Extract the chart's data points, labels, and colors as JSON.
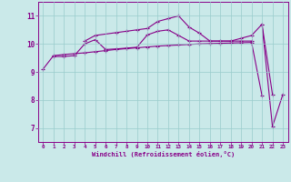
{
  "xlabel": "Windchill (Refroidissement éolien,°C)",
  "xlim": [
    -0.5,
    23.5
  ],
  "ylim": [
    6.5,
    11.5
  ],
  "yticks": [
    7,
    8,
    9,
    10,
    11
  ],
  "xticks": [
    0,
    1,
    2,
    3,
    4,
    5,
    6,
    7,
    8,
    9,
    10,
    11,
    12,
    13,
    14,
    15,
    16,
    17,
    18,
    19,
    20,
    21,
    22,
    23
  ],
  "bg_color": "#cae9e9",
  "line_color": "#880088",
  "grid_color": "#99cccc",
  "lines": [
    {
      "x": [
        0,
        1,
        2,
        3,
        4,
        5,
        6,
        7,
        8,
        9,
        10,
        11,
        12,
        13,
        14,
        15,
        16,
        17,
        18,
        19,
        20,
        21
      ],
      "y": [
        9.1,
        9.58,
        9.62,
        9.65,
        9.68,
        9.72,
        9.76,
        9.8,
        9.83,
        9.86,
        9.89,
        9.92,
        9.94,
        9.96,
        9.98,
        10.0,
        10.01,
        10.02,
        10.03,
        10.04,
        10.05,
        8.15
      ]
    },
    {
      "x": [
        1,
        2,
        3,
        4,
        5,
        6,
        7,
        8,
        9,
        10,
        11,
        12,
        13,
        14,
        15,
        16,
        17,
        18,
        19,
        20,
        21,
        22
      ],
      "y": [
        9.55,
        9.55,
        9.58,
        10.0,
        10.15,
        9.8,
        9.82,
        9.85,
        9.88,
        10.32,
        10.45,
        10.5,
        10.3,
        10.1,
        10.1,
        10.1,
        10.1,
        10.1,
        10.2,
        10.3,
        10.7,
        8.2
      ]
    },
    {
      "x": [
        4,
        5,
        7,
        8,
        9,
        10,
        11,
        12,
        13,
        14,
        15,
        16,
        17,
        18,
        19,
        20
      ],
      "y": [
        10.1,
        10.3,
        10.4,
        10.45,
        10.5,
        10.55,
        10.8,
        10.9,
        11.0,
        10.6,
        10.38,
        10.1,
        10.1,
        10.1,
        10.1,
        10.1
      ]
    },
    {
      "x": [
        21,
        22,
        23
      ],
      "y": [
        10.7,
        7.05,
        8.2
      ]
    }
  ]
}
